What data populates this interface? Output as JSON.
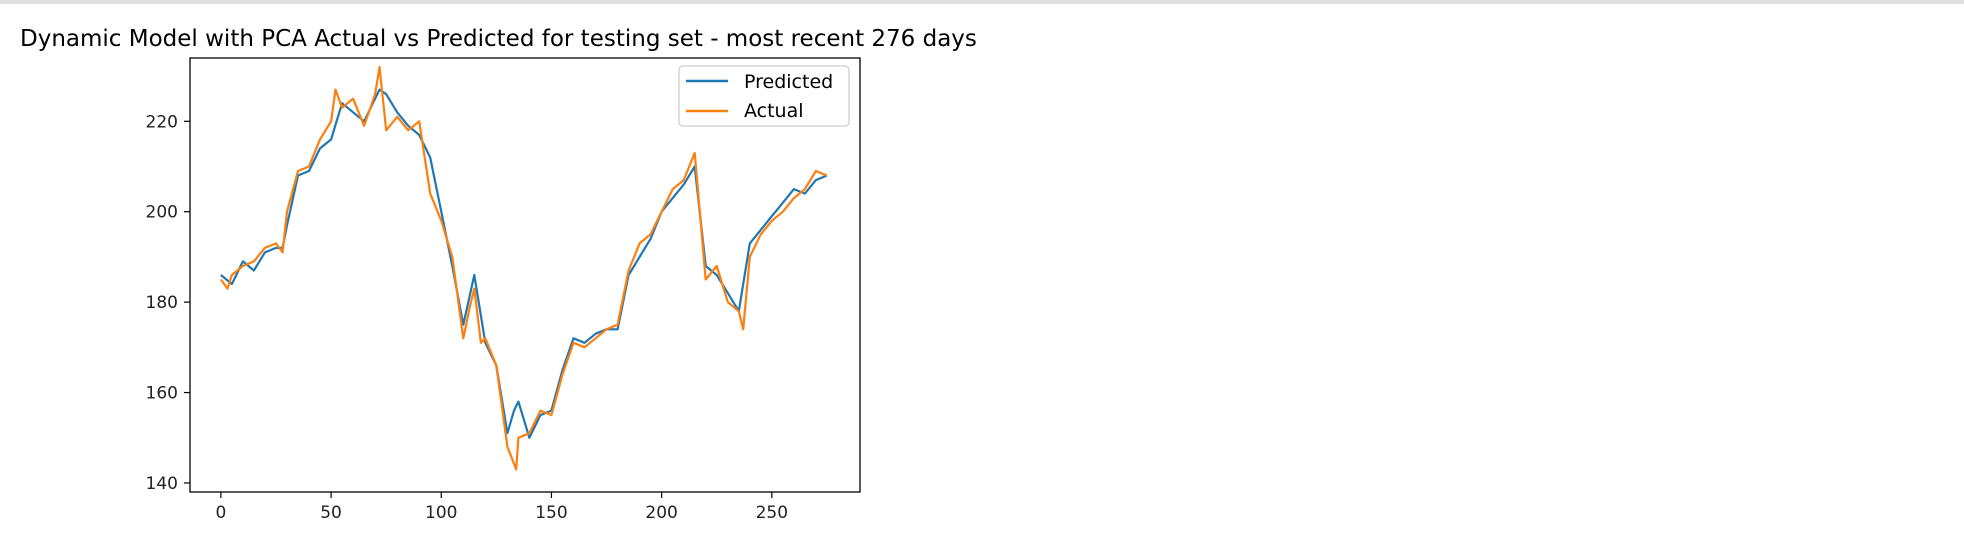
{
  "chart_data": {
    "type": "line",
    "title": "Dynamic Model with PCA Actual vs Predicted for testing set - most recent 276 days",
    "xlabel": "",
    "ylabel": "",
    "xlim": [
      -14,
      290
    ],
    "ylim": [
      138,
      234
    ],
    "xticks": [
      0,
      50,
      100,
      150,
      200,
      250
    ],
    "yticks": [
      140,
      160,
      180,
      200,
      220
    ],
    "grid": false,
    "legend_position": "upper right",
    "series": [
      {
        "name": "Predicted",
        "color": "#1f77b4",
        "x": [
          0,
          5,
          10,
          15,
          20,
          25,
          28,
          30,
          35,
          40,
          45,
          50,
          55,
          60,
          65,
          70,
          72,
          75,
          80,
          85,
          90,
          95,
          100,
          105,
          110,
          115,
          118,
          120,
          125,
          130,
          133,
          135,
          140,
          145,
          150,
          155,
          160,
          165,
          170,
          175,
          180,
          185,
          190,
          195,
          200,
          205,
          210,
          215,
          220,
          225,
          230,
          235,
          240,
          245,
          250,
          255,
          260,
          265,
          270,
          275
        ],
        "y": [
          186,
          184,
          189,
          187,
          191,
          192,
          192,
          197,
          208,
          209,
          214,
          216,
          224,
          222,
          220,
          225,
          227,
          226,
          222,
          219,
          217,
          212,
          200,
          188,
          175,
          186,
          177,
          171,
          166,
          151,
          156,
          158,
          150,
          155,
          156,
          165,
          172,
          171,
          173,
          174,
          174,
          186,
          190,
          194,
          200,
          203,
          206,
          210,
          188,
          186,
          182,
          178,
          193,
          196,
          199,
          202,
          205,
          204,
          207,
          208
        ]
      },
      {
        "name": "Actual",
        "color": "#ff7f0e",
        "x": [
          0,
          3,
          5,
          10,
          15,
          20,
          25,
          28,
          30,
          35,
          40,
          45,
          50,
          52,
          55,
          60,
          65,
          70,
          72,
          75,
          80,
          85,
          90,
          95,
          100,
          105,
          110,
          113,
          115,
          118,
          120,
          125,
          130,
          134,
          135,
          140,
          145,
          150,
          155,
          160,
          165,
          170,
          175,
          180,
          185,
          190,
          195,
          200,
          205,
          210,
          215,
          220,
          225,
          230,
          235,
          237,
          240,
          245,
          250,
          255,
          260,
          265,
          270,
          275
        ],
        "y": [
          185,
          183,
          186,
          188,
          189,
          192,
          193,
          191,
          200,
          209,
          210,
          216,
          220,
          227,
          223,
          225,
          219,
          226,
          232,
          218,
          221,
          218,
          220,
          204,
          198,
          190,
          172,
          179,
          183,
          171,
          172,
          166,
          148,
          143,
          150,
          151,
          156,
          155,
          164,
          171,
          170,
          172,
          174,
          175,
          187,
          193,
          195,
          200,
          205,
          207,
          213,
          185,
          188,
          180,
          178,
          174,
          190,
          195,
          198,
          200,
          203,
          205,
          209,
          208
        ]
      }
    ]
  }
}
